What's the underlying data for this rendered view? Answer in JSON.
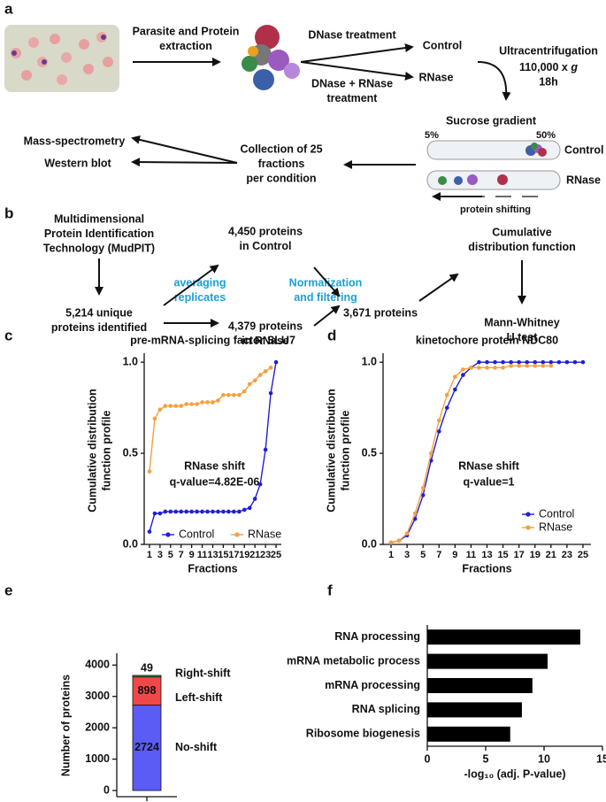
{
  "panel_labels": [
    "a",
    "b",
    "c",
    "d",
    "e",
    "f"
  ],
  "workflow": {
    "extraction": [
      "Parasite and Protein",
      "extraction"
    ],
    "dnase": "DNase treatment",
    "dnase_rnase": [
      "DNase + RNase",
      "treatment"
    ],
    "control": "Control",
    "rnase": "RNase",
    "ultracentrifugation": "Ultracentrifugation",
    "speed": "110,000 x ",
    "speed_unit": "g",
    "time": "18h",
    "gradient": "Sucrose gradient",
    "low": "5%",
    "high": "50%",
    "tube_control": "Control",
    "tube_rnase": "RNase",
    "shifting": "protein shifting",
    "collection": [
      "Collection of 25",
      "fractions",
      "per condition"
    ],
    "ms": "Mass-spectrometry",
    "wb": "Western blot"
  },
  "pipeline": {
    "mudpit": [
      "Multidimensional",
      "Protein Identification",
      "Technology (MudPIT)"
    ],
    "unique": [
      "5,214 unique",
      "proteins identified"
    ],
    "control": [
      "4,450 proteins",
      "in Control"
    ],
    "rnase": [
      "4,379 proteins",
      "in RNase"
    ],
    "averaging": [
      "averaging",
      "replicates"
    ],
    "normalization": [
      "Normalization",
      "and filtering"
    ],
    "final": "3,671 proteins",
    "cdf": [
      "Cumulative",
      "distribution function"
    ],
    "test": [
      "Mann-Whitney",
      "U test"
    ]
  },
  "chart_data": [
    {
      "type": "line",
      "title": "pre-mRNA-splicing factor SLU7",
      "x_label": "Fractions",
      "y_label": [
        "Cumulative distribution",
        "function profile"
      ],
      "annotation": [
        "RNase shift",
        "q-value=4.82E-06"
      ],
      "x": [
        1,
        2,
        3,
        4,
        5,
        6,
        7,
        8,
        9,
        10,
        11,
        12,
        13,
        14,
        15,
        16,
        17,
        18,
        19,
        20,
        21,
        22,
        23,
        24,
        25
      ],
      "series": [
        {
          "name": "Control",
          "color": "#1f1fd6",
          "values": [
            0.07,
            0.17,
            0.17,
            0.18,
            0.18,
            0.18,
            0.18,
            0.18,
            0.18,
            0.18,
            0.18,
            0.18,
            0.18,
            0.18,
            0.18,
            0.18,
            0.18,
            0.18,
            0.19,
            0.2,
            0.25,
            0.33,
            0.52,
            0.83,
            1.0
          ]
        },
        {
          "name": "RNase",
          "color": "#f5a040",
          "values": [
            0.4,
            0.69,
            0.74,
            0.76,
            0.76,
            0.76,
            0.76,
            0.77,
            0.77,
            0.77,
            0.78,
            0.78,
            0.78,
            0.79,
            0.82,
            0.82,
            0.82,
            0.82,
            0.84,
            0.88,
            0.9,
            0.93,
            0.95,
            0.97,
            null
          ]
        }
      ],
      "xlim": [
        0,
        26
      ],
      "xticks": [
        1,
        3,
        5,
        7,
        9,
        11,
        13,
        15,
        17,
        19,
        21,
        23,
        25
      ],
      "ylim": [
        0,
        1.03
      ],
      "yticks": [
        {
          "value": 0,
          "label": "0.0"
        },
        0.5,
        {
          "value": 1,
          "label": "1.0"
        }
      ],
      "legend": "lower right"
    },
    {
      "type": "line",
      "title": "kinetochore protein NDC80",
      "x_label": "Fractions",
      "y_label": [
        "Cumulative distribution",
        "function profile"
      ],
      "annotation": [
        "RNase shift",
        "q-value=1"
      ],
      "x": [
        1,
        2,
        3,
        4,
        5,
        6,
        7,
        8,
        9,
        10,
        11,
        12,
        13,
        14,
        15,
        16,
        17,
        18,
        19,
        20,
        21,
        22,
        23,
        24,
        25
      ],
      "series": [
        {
          "name": "Control",
          "color": "#1f1fd6",
          "values": [
            0.01,
            0.02,
            0.05,
            0.14,
            0.27,
            0.46,
            0.62,
            0.75,
            0.85,
            0.93,
            0.97,
            1.0,
            1.0,
            1.0,
            1.0,
            1.0,
            1.0,
            1.0,
            1.0,
            1.0,
            1.0,
            1.0,
            1.0,
            1.0,
            1.0
          ]
        },
        {
          "name": "RNase",
          "color": "#f5a040",
          "values": [
            0.01,
            0.02,
            0.06,
            0.17,
            0.31,
            0.5,
            0.68,
            0.82,
            0.92,
            0.96,
            0.97,
            0.97,
            0.97,
            0.97,
            0.97,
            0.98,
            0.98,
            0.98,
            0.98,
            0.98,
            0.98,
            null,
            null,
            null,
            null
          ]
        }
      ],
      "xlim": [
        0,
        26
      ],
      "xticks": [
        1,
        3,
        5,
        7,
        9,
        11,
        13,
        15,
        17,
        19,
        21,
        23,
        25
      ],
      "ylim": [
        0,
        1.03
      ],
      "yticks": [
        {
          "value": 0,
          "label": "0.0"
        },
        0.5,
        {
          "value": 1,
          "label": "1.0"
        }
      ],
      "legend": "lower right"
    },
    {
      "type": "stacked_bar",
      "y_label": "Number of proteins",
      "categories": [
        null
      ],
      "series": [
        {
          "name": "No-shift",
          "color": "#5b5bf5",
          "values": [
            2724
          ]
        },
        {
          "name": "Left-shift",
          "color": "#f04848",
          "values": [
            898
          ]
        },
        {
          "name": "Right-shift",
          "color": "#3a9a3a",
          "values": [
            49
          ]
        }
      ],
      "ylim": [
        0,
        4150
      ],
      "yticks": [
        0,
        1000,
        2000,
        3000,
        4000
      ]
    },
    {
      "type": "hbar",
      "x_label": "-log₁₀ (adj. P-value)",
      "categories": [
        "RNA processing",
        "mRNA metabolic process",
        "mRNA processing",
        "RNA splicing",
        "Ribosome biogenesis"
      ],
      "values": [
        13.1,
        10.3,
        9.0,
        8.1,
        7.1
      ],
      "color": "#000000",
      "xlim": [
        0,
        15
      ],
      "xticks": [
        0,
        5,
        10,
        15
      ]
    }
  ]
}
